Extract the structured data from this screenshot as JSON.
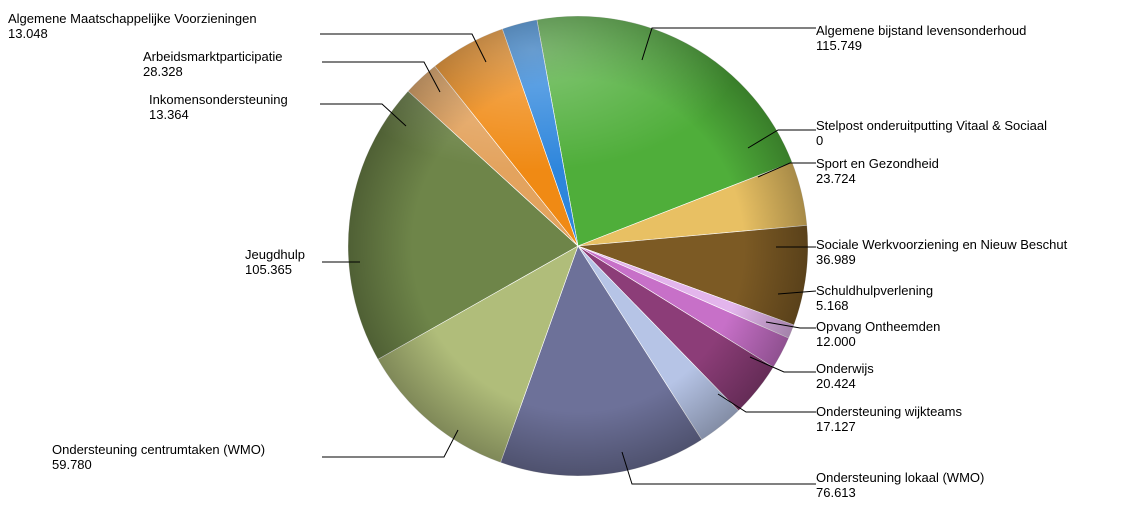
{
  "chart_data": {
    "type": "pie",
    "title": "",
    "slices": [
      {
        "name": "Algemene bijstand levensonderhoud",
        "value": 115.749,
        "label": "115.749",
        "color": "#4fae3a"
      },
      {
        "name": "Stelpost onderuitputting Vitaal & Sociaal",
        "value": 0,
        "label": "0",
        "color": "#d9c98a"
      },
      {
        "name": "Sport en Gezondheid",
        "value": 23.724,
        "label": "23.724",
        "color": "#e8c063"
      },
      {
        "name": "Sociale Werkvoorziening en Nieuw Beschut",
        "value": 36.989,
        "label": "36.989",
        "color": "#7c5a24"
      },
      {
        "name": "Schuldhulpverlening",
        "value": 5.168,
        "label": "5.168",
        "color": "#e3b5ec"
      },
      {
        "name": "Opvang Ontheemden",
        "value": 12.0,
        "label": "12.000",
        "color": "#c770c8"
      },
      {
        "name": "Onderwijs",
        "value": 20.424,
        "label": "20.424",
        "color": "#8c3d78"
      },
      {
        "name": "Ondersteuning wijkteams",
        "value": 17.127,
        "label": "17.127",
        "color": "#b6c4e6"
      },
      {
        "name": "Ondersteuning lokaal (WMO)",
        "value": 76.613,
        "label": "76.613",
        "color": "#6d7199"
      },
      {
        "name": "Ondersteuning centrumtaken (WMO)",
        "value": 59.78,
        "label": "59.780",
        "color": "#b0bd7a"
      },
      {
        "name": "Jeugdhulp",
        "value": 105.365,
        "label": "105.365",
        "color": "#6e8549"
      },
      {
        "name": "Inkomensondersteuning",
        "value": 13.364,
        "label": "13.364",
        "color": "#e3a35e"
      },
      {
        "name": "Arbeidsmarktparticipatie",
        "value": 28.328,
        "label": "28.328",
        "color": "#f08a14"
      },
      {
        "name": "Algemene Maatschappelijke Voorzieningen",
        "value": 13.048,
        "label": "13.048",
        "color": "#2e86dc"
      }
    ]
  }
}
